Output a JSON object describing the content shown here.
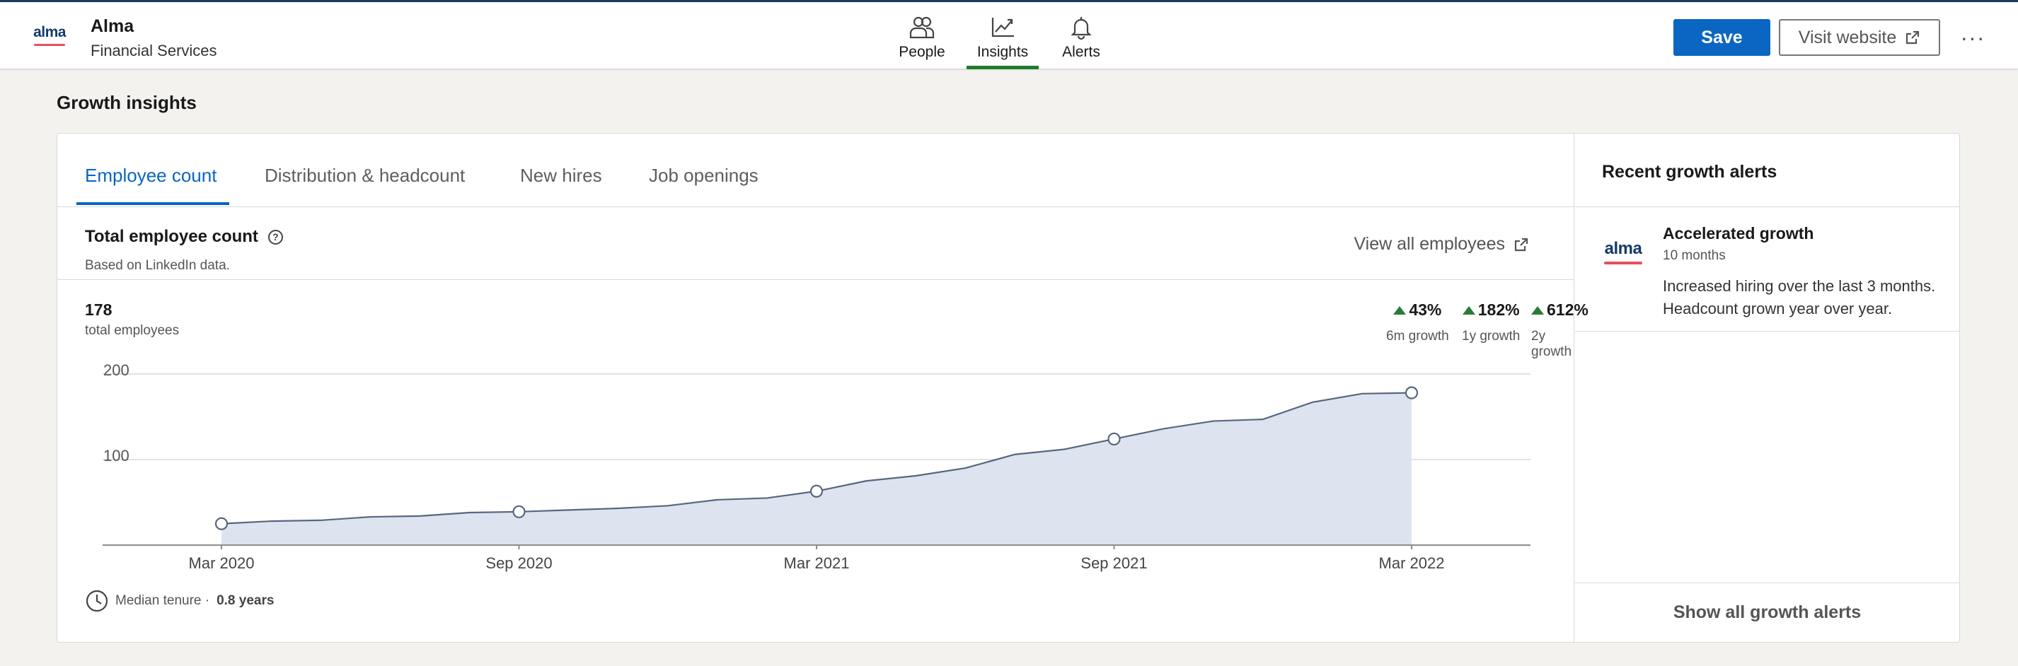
{
  "header": {
    "logo_text": "alma",
    "company_name": "Alma",
    "industry": "Financial Services",
    "nav": [
      {
        "label": "People",
        "icon": "people-icon",
        "active": false
      },
      {
        "label": "Insights",
        "icon": "chart-icon",
        "active": true
      },
      {
        "label": "Alerts",
        "icon": "bell-icon",
        "active": false
      }
    ],
    "save_label": "Save",
    "visit_label": "Visit website",
    "more_label": "···"
  },
  "section_title": "Growth insights",
  "tabs": [
    "Employee count",
    "Distribution & headcount",
    "New hires",
    "Job openings"
  ],
  "active_tab": "Employee count",
  "stat": {
    "title": "Total employee count",
    "help_glyph": "?",
    "subtitle": "Based on LinkedIn data.",
    "view_all": "View all employees",
    "total": "178",
    "total_label": "total employees",
    "growth": [
      {
        "value": "43%",
        "label": "6m growth"
      },
      {
        "value": "182%",
        "label": "1y growth"
      },
      {
        "value": "612%",
        "label": "2y growth"
      }
    ],
    "tenure_label": "Median tenure · ",
    "tenure_value": "0.8 years"
  },
  "chart_data": {
    "type": "area",
    "x_ticks": [
      "Mar 2020",
      "Sep 2020",
      "Mar 2021",
      "Sep 2021",
      "Mar 2022"
    ],
    "y_ticks": [
      100,
      200
    ],
    "ylim": [
      0,
      200
    ],
    "series": [
      {
        "x": [
          "Mar 2020",
          "Apr 2020",
          "May 2020",
          "Jun 2020",
          "Jul 2020",
          "Aug 2020",
          "Sep 2020",
          "Oct 2020",
          "Nov 2020",
          "Dec 2020",
          "Jan 2021",
          "Feb 2021",
          "Mar 2021",
          "Apr 2021",
          "May 2021",
          "Jun 2021",
          "Jul 2021",
          "Aug 2021",
          "Sep 2021",
          "Oct 2021",
          "Nov 2021",
          "Dec 2021",
          "Jan 2022",
          "Feb 2022",
          "Mar 2022"
        ],
        "values": [
          25,
          28,
          29,
          33,
          34,
          38,
          39,
          41,
          43,
          46,
          53,
          55,
          63,
          75,
          81,
          90,
          106,
          112,
          124,
          136,
          145,
          147,
          167,
          177,
          178
        ],
        "markers": [
          "Mar 2020",
          "Sep 2020",
          "Mar 2021",
          "Sep 2021",
          "Mar 2022"
        ]
      }
    ],
    "colors": {
      "fill": "#dde4ef",
      "line": "#56677e",
      "grid": "#d9d9d9",
      "axis": "#8c8c8c"
    }
  },
  "alerts": {
    "title": "Recent growth alerts",
    "items": [
      {
        "logo_text": "alma",
        "title": "Accelerated growth",
        "time": "10 months",
        "body": "Increased hiring over the last 3 months. Headcount grown year over year."
      }
    ],
    "show_all": "Show all growth alerts"
  },
  "colors": {
    "brand_blue": "#0a66c2",
    "active_nav": "#217a2e",
    "growth_up": "#2a7a3a",
    "logo_red": "#e8505b"
  }
}
